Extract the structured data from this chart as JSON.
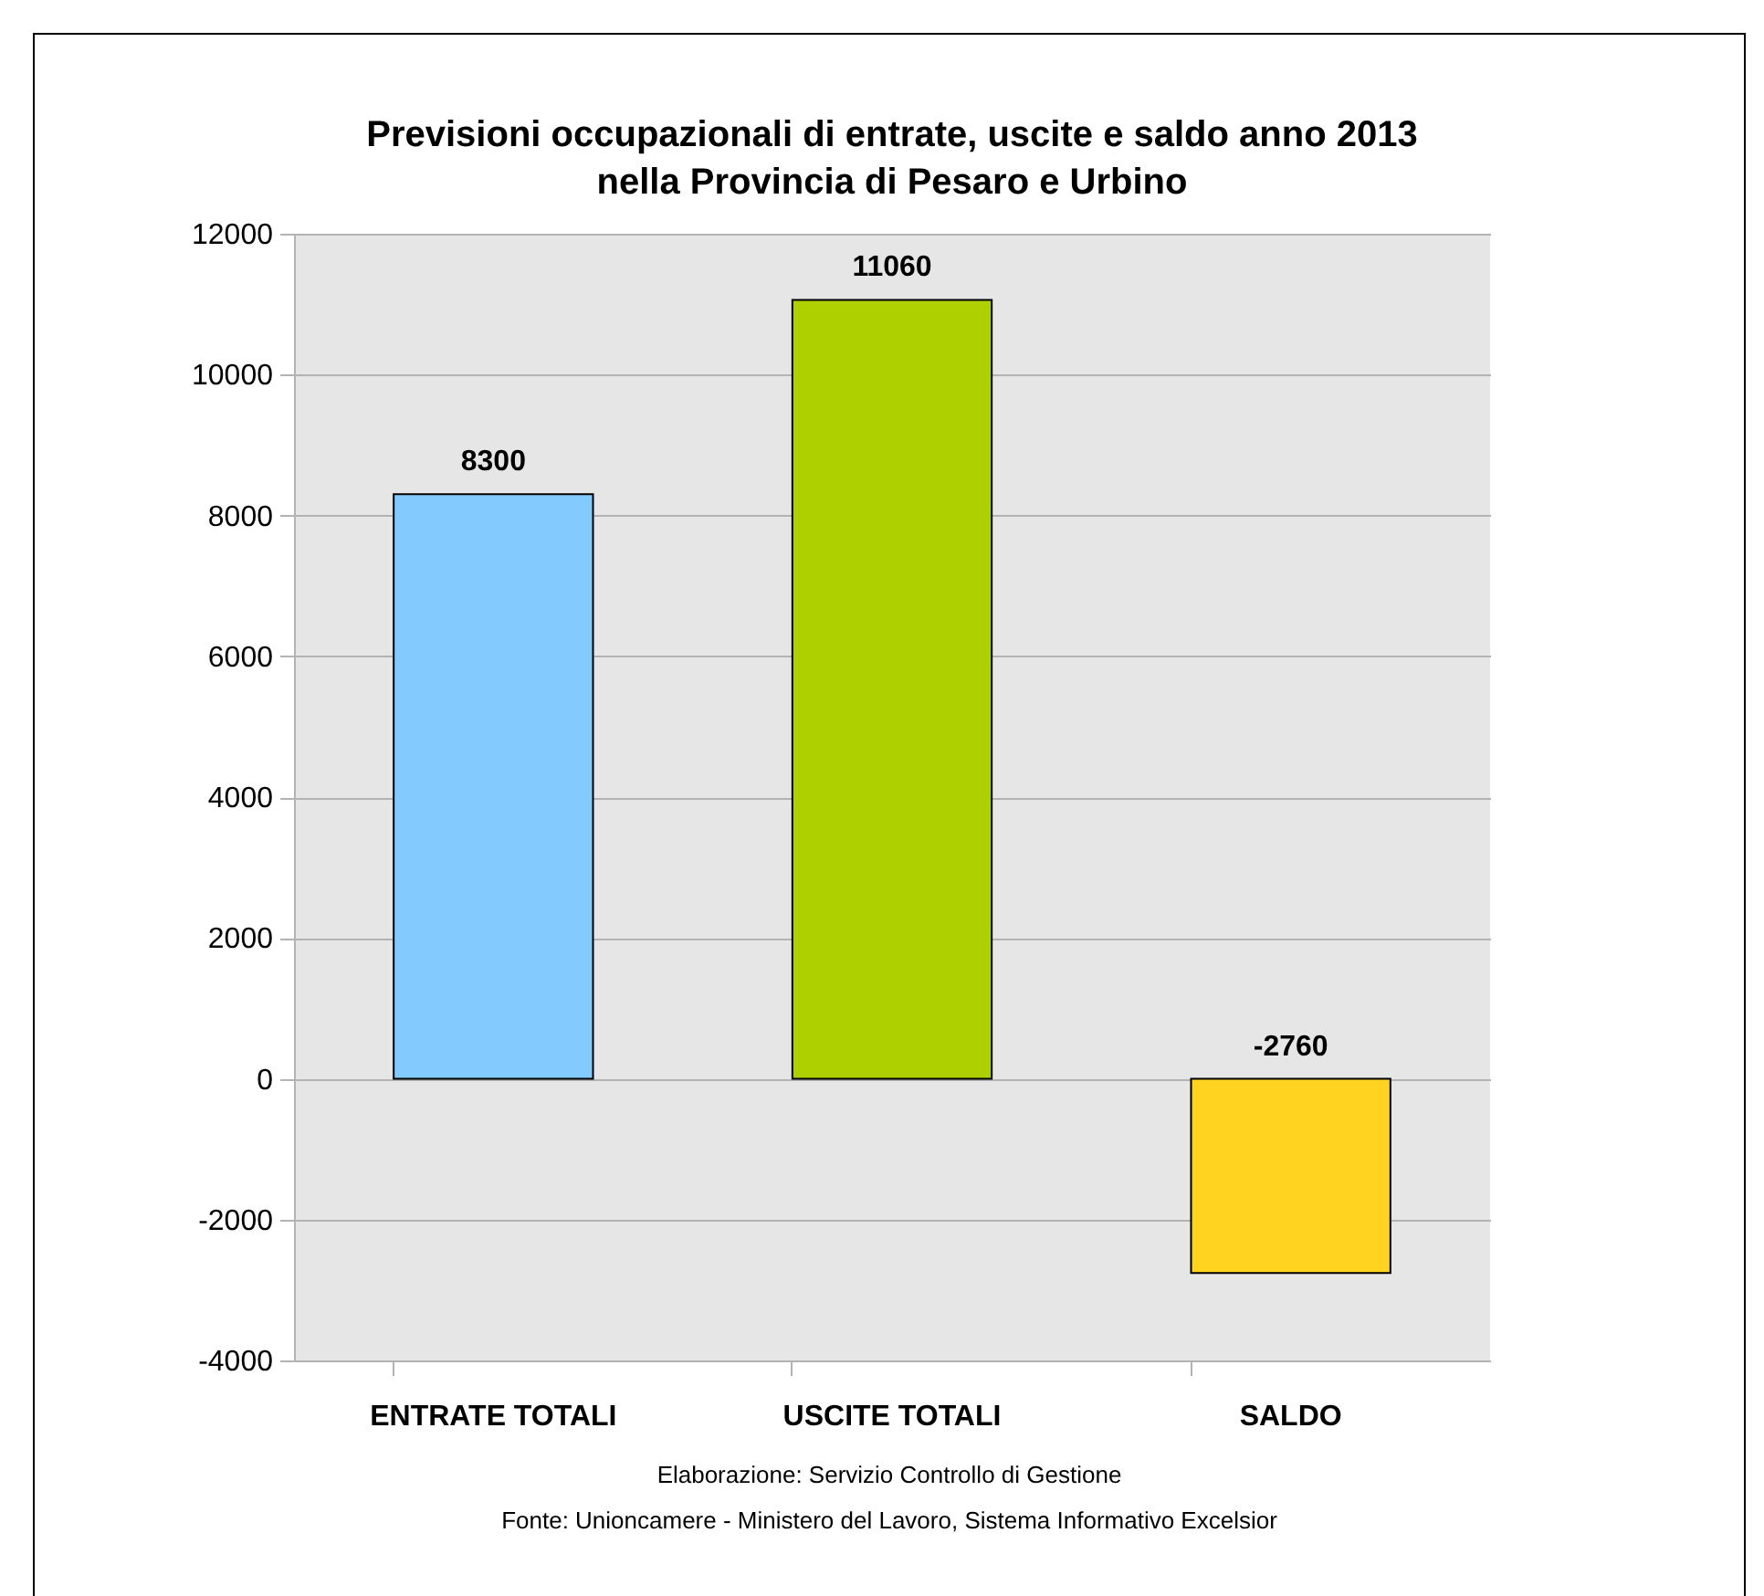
{
  "chart_data": {
    "type": "bar",
    "title": "Previsioni occupazionali di entrate, uscite e saldo anno 2013\nnella Provincia di Pesaro e Urbino",
    "categories": [
      "ENTRATE TOTALI",
      "USCITE TOTALI",
      "SALDO"
    ],
    "values": [
      8300,
      11060,
      -2760
    ],
    "colors": [
      "#83caff",
      "#aecf00",
      "#ffd320"
    ],
    "ylim": [
      -4000,
      12000
    ],
    "yticks": [
      -4000,
      -2000,
      0,
      2000,
      4000,
      6000,
      8000,
      10000,
      12000
    ],
    "grid": "y",
    "data_labels": true,
    "legend": false,
    "annotations": [
      "Elaborazione: Servizio Controllo di Gestione",
      "Fonte: Unioncamere - Ministero del Lavoro, Sistema Informativo Excelsior"
    ]
  }
}
